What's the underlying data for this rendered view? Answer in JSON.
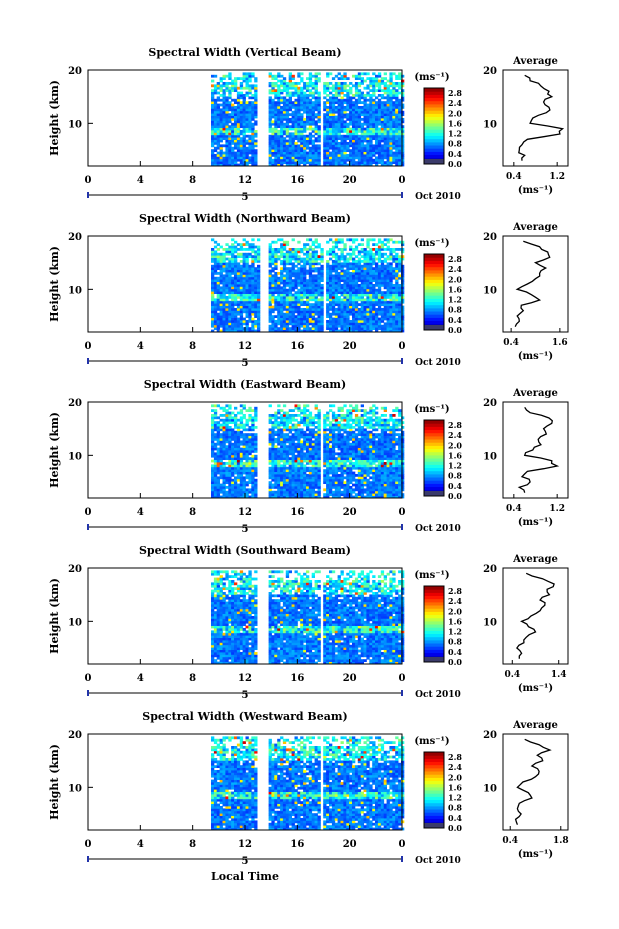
{
  "figure": {
    "x_axis_title": "Local Time",
    "date_label": "Oct 2010",
    "day_marker": "5"
  },
  "chart_data": [
    {
      "type": "heatmap",
      "title": "Spectral Width (Vertical Beam)",
      "ylabel": "Height (km)",
      "xlim": [
        0,
        24
      ],
      "ylim": [
        2,
        20
      ],
      "x_ticks": [
        "0",
        "4",
        "8",
        "12",
        "16",
        "20",
        "0"
      ],
      "y_ticks": [
        "20",
        "10"
      ],
      "colorbar": {
        "unit": "(ms⁻¹)",
        "ticks": [
          "2.8",
          "2.4",
          "2.0",
          "1.6",
          "1.2",
          "0.8",
          "0.4",
          "0.0"
        ],
        "range": [
          0,
          3
        ]
      },
      "data_gaps_hours": [
        [
          0,
          9.4
        ],
        [
          12.9,
          13.7
        ],
        [
          17.6,
          17.9
        ]
      ],
      "avg_profile": {
        "title": "Average",
        "xlabel": "(ms⁻¹)",
        "x_ticks": [
          "0.4",
          "1.2"
        ],
        "xlim": [
          0.2,
          1.4
        ],
        "heights": [
          3,
          4,
          5,
          6,
          7,
          8,
          9,
          10,
          11,
          12,
          13,
          14,
          15,
          16,
          17,
          18,
          19
        ],
        "values": [
          0.55,
          0.6,
          0.5,
          0.55,
          0.65,
          1.25,
          1.3,
          0.7,
          0.75,
          1.0,
          1.05,
          0.95,
          1.1,
          1.05,
          0.9,
          0.7,
          0.6
        ]
      }
    },
    {
      "type": "heatmap",
      "title": "Spectral Width (Northward Beam)",
      "ylabel": "Height (km)",
      "xlim": [
        0,
        24
      ],
      "ylim": [
        2,
        20
      ],
      "x_ticks": [
        "0",
        "4",
        "8",
        "12",
        "16",
        "20",
        "0"
      ],
      "y_ticks": [
        "20",
        "10"
      ],
      "colorbar": {
        "unit": "(ms⁻¹)",
        "ticks": [
          "2.8",
          "2.4",
          "2.0",
          "1.6",
          "1.2",
          "0.8",
          "0.4",
          "0.0"
        ],
        "range": [
          0,
          3
        ]
      },
      "data_gaps_hours": [
        [
          0,
          9.4
        ],
        [
          13.0,
          13.8
        ],
        [
          17.8,
          18.2
        ]
      ],
      "avg_profile": {
        "title": "Average",
        "xlabel": "(ms⁻¹)",
        "x_ticks": [
          "0.4",
          "1.6"
        ],
        "xlim": [
          0.2,
          1.8
        ],
        "heights": [
          3,
          4,
          5,
          6,
          7,
          8,
          9,
          10,
          11,
          12,
          13,
          14,
          15,
          16,
          17,
          18,
          19
        ],
        "values": [
          0.5,
          0.6,
          0.55,
          0.7,
          0.65,
          1.1,
          0.9,
          0.55,
          0.8,
          1.0,
          1.1,
          1.25,
          1.0,
          1.35,
          1.3,
          1.1,
          0.7
        ]
      }
    },
    {
      "type": "heatmap",
      "title": "Spectral Width (Eastward Beam)",
      "ylabel": "Height (km)",
      "xlim": [
        0,
        24
      ],
      "ylim": [
        2,
        20
      ],
      "x_ticks": [
        "0",
        "4",
        "8",
        "12",
        "16",
        "20",
        "0"
      ],
      "y_ticks": [
        "20",
        "10"
      ],
      "colorbar": {
        "unit": "(ms⁻¹)",
        "ticks": [
          "2.8",
          "2.4",
          "2.0",
          "1.6",
          "1.2",
          "0.8",
          "0.4",
          "0.0"
        ],
        "range": [
          0,
          3
        ]
      },
      "data_gaps_hours": [
        [
          0,
          9.4
        ],
        [
          12.9,
          13.7
        ],
        [
          17.6,
          17.9
        ]
      ],
      "avg_profile": {
        "title": "Average",
        "xlabel": "(ms⁻¹)",
        "x_ticks": [
          "0.4",
          "1.2"
        ],
        "xlim": [
          0.2,
          1.4
        ],
        "heights": [
          3,
          4,
          5,
          6,
          7,
          8,
          9,
          10,
          11,
          12,
          13,
          14,
          15,
          16,
          17,
          18,
          19
        ],
        "values": [
          0.6,
          0.5,
          0.7,
          0.55,
          0.65,
          1.2,
          1.1,
          0.6,
          0.75,
          0.9,
          0.85,
          1.0,
          0.95,
          1.1,
          1.05,
          0.7,
          0.6
        ]
      }
    },
    {
      "type": "heatmap",
      "title": "Spectral Width (Southward Beam)",
      "ylabel": "Height (km)",
      "xlim": [
        0,
        24
      ],
      "ylim": [
        2,
        20
      ],
      "x_ticks": [
        "0",
        "4",
        "8",
        "12",
        "16",
        "20",
        "0"
      ],
      "y_ticks": [
        "20",
        "10"
      ],
      "colorbar": {
        "unit": "(ms⁻¹)",
        "ticks": [
          "2.8",
          "2.4",
          "2.0",
          "1.6",
          "1.2",
          "0.8",
          "0.4",
          "0.0"
        ],
        "range": [
          0,
          3
        ]
      },
      "data_gaps_hours": [
        [
          0,
          9.4
        ],
        [
          12.9,
          13.7
        ],
        [
          17.6,
          17.9
        ]
      ],
      "avg_profile": {
        "title": "Average",
        "xlabel": "(ms⁻¹)",
        "x_ticks": [
          "0.4",
          "1.4"
        ],
        "xlim": [
          0.2,
          1.6
        ],
        "heights": [
          3,
          4,
          5,
          6,
          7,
          8,
          9,
          10,
          11,
          12,
          13,
          14,
          15,
          16,
          17,
          18,
          19
        ],
        "values": [
          0.55,
          0.6,
          0.5,
          0.65,
          0.7,
          0.9,
          0.75,
          0.6,
          0.8,
          1.0,
          1.1,
          1.0,
          1.2,
          1.15,
          1.3,
          1.05,
          0.7
        ]
      }
    },
    {
      "type": "heatmap",
      "title": "Spectral Width (Westward Beam)",
      "ylabel": "Height (km)",
      "xlim": [
        0,
        24
      ],
      "ylim": [
        2,
        20
      ],
      "x_ticks": [
        "0",
        "4",
        "8",
        "12",
        "16",
        "20",
        "0"
      ],
      "y_ticks": [
        "20",
        "10"
      ],
      "colorbar": {
        "unit": "(ms⁻¹)",
        "ticks": [
          "2.8",
          "2.4",
          "2.0",
          "1.6",
          "1.2",
          "0.8",
          "0.4",
          "0.0"
        ],
        "range": [
          0,
          3
        ]
      },
      "data_gaps_hours": [
        [
          0,
          9.4
        ],
        [
          12.9,
          13.7
        ],
        [
          17.6,
          17.9
        ]
      ],
      "avg_profile": {
        "title": "Average",
        "xlabel": "(ms⁻¹)",
        "x_ticks": [
          "0.4",
          "1.8"
        ],
        "xlim": [
          0.2,
          2.0
        ],
        "heights": [
          3,
          4,
          5,
          6,
          7,
          8,
          9,
          10,
          11,
          12,
          13,
          14,
          15,
          16,
          17,
          18,
          19
        ],
        "values": [
          0.6,
          0.55,
          0.7,
          0.6,
          0.65,
          1.0,
          0.9,
          0.6,
          0.75,
          1.1,
          1.2,
          1.0,
          1.3,
          1.15,
          1.5,
          1.2,
          0.8
        ]
      }
    }
  ]
}
